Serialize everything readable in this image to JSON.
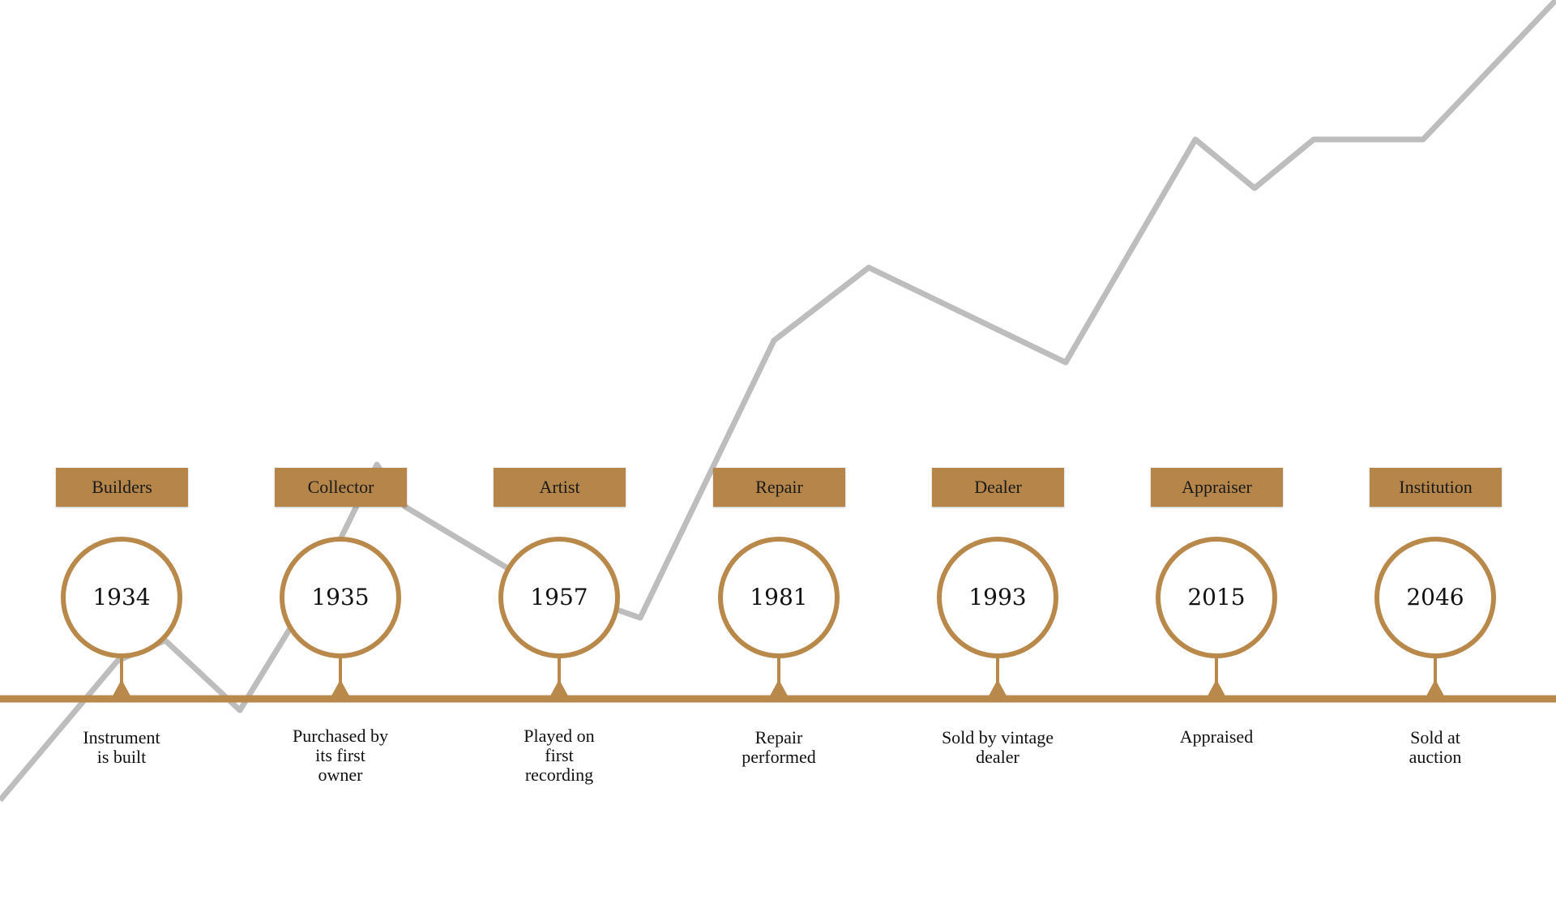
{
  "timeline": {
    "events": [
      {
        "role": "Builders",
        "year": "1934",
        "description": "Instrument\nis built"
      },
      {
        "role": "Collector",
        "year": "1935",
        "description": "Purchased by\nits first\nowner"
      },
      {
        "role": "Artist",
        "year": "1957",
        "description": "Played on\nfirst\nrecording"
      },
      {
        "role": "Repair",
        "year": "1981",
        "description": "Repair\nperformed"
      },
      {
        "role": "Dealer",
        "year": "1993",
        "description": "Sold by vintage\ndealer"
      },
      {
        "role": "Appraiser",
        "year": "2015",
        "description": "Appraised"
      },
      {
        "role": "Institution",
        "year": "2046",
        "description": "Sold at\nauction"
      }
    ]
  },
  "colors": {
    "accent": "#b8894a",
    "role_box": "#b5854a",
    "trend_line": "#bdbdbd"
  }
}
